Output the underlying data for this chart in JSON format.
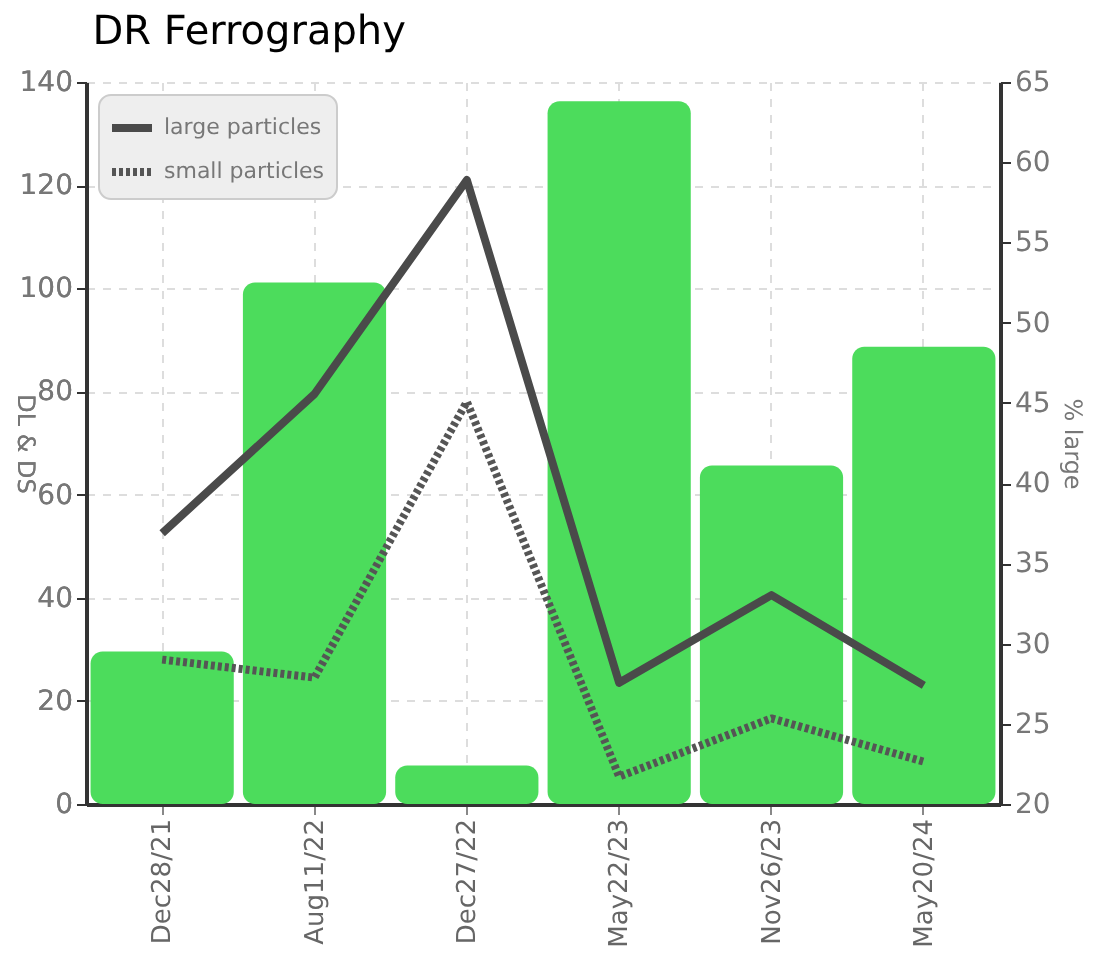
{
  "chart_data": {
    "type": "line",
    "title": "DR Ferrography",
    "ylabel": "DL & DS",
    "y2label": "% large",
    "categories": [
      "Dec28/21",
      "Aug11/22",
      "Dec27/22",
      "May22/23",
      "Nov26/23",
      "May20/24"
    ],
    "series": [
      {
        "type": "bar",
        "axis": "y2",
        "color": "#4cdc5c",
        "values": [
          29.5,
          52.5,
          22.4,
          63.8,
          41.1,
          48.5
        ]
      },
      {
        "name": "large particles",
        "color": "#4a4a4a",
        "line_style": "solid",
        "values": [
          52.5,
          79.5,
          121,
          23.5,
          40.5,
          23
        ]
      },
      {
        "name": "small particles",
        "color": "#555555",
        "line_style": "dotted",
        "values": [
          28,
          24.5,
          78,
          5.3,
          16.6,
          8.2
        ]
      }
    ],
    "ylim": [
      0,
      140
    ],
    "yticks": [
      0,
      20,
      40,
      60,
      80,
      100,
      120,
      140
    ],
    "y2lim": [
      20,
      65
    ],
    "y2ticks": [
      20,
      25,
      30,
      35,
      40,
      45,
      50,
      55,
      60,
      65
    ],
    "grid": true,
    "legend": "top left"
  }
}
